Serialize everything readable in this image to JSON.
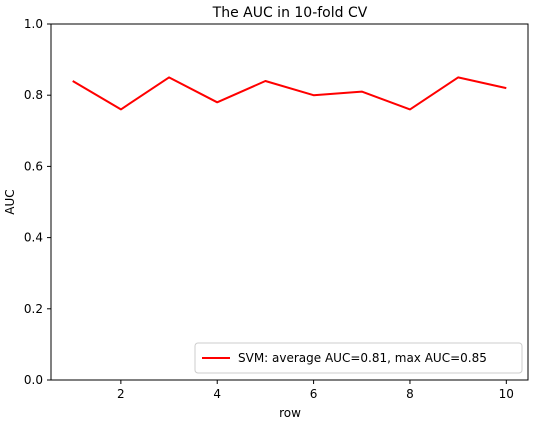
{
  "chart_data": {
    "type": "line",
    "title": "The AUC in 10-fold CV",
    "xlabel": "row",
    "ylabel": "AUC",
    "xlim": [
      0.55,
      10.45
    ],
    "ylim": [
      0.0,
      1.0
    ],
    "xticks": [
      2,
      4,
      6,
      8,
      10
    ],
    "yticks": [
      0.0,
      0.2,
      0.4,
      0.6,
      0.8,
      1.0
    ],
    "xtick_labels": [
      "2",
      "4",
      "6",
      "8",
      "10"
    ],
    "ytick_labels": [
      "0.0",
      "0.2",
      "0.4",
      "0.6",
      "0.8",
      "1.0"
    ],
    "grid": false,
    "legend_position": "lower-right",
    "series": [
      {
        "name": "SVM: average AUC=0.81, max AUC=0.85",
        "color": "#ff0000",
        "x": [
          1,
          2,
          3,
          4,
          5,
          6,
          7,
          8,
          9,
          10
        ],
        "y": [
          0.84,
          0.76,
          0.85,
          0.78,
          0.84,
          0.8,
          0.81,
          0.76,
          0.85,
          0.82
        ]
      }
    ]
  }
}
